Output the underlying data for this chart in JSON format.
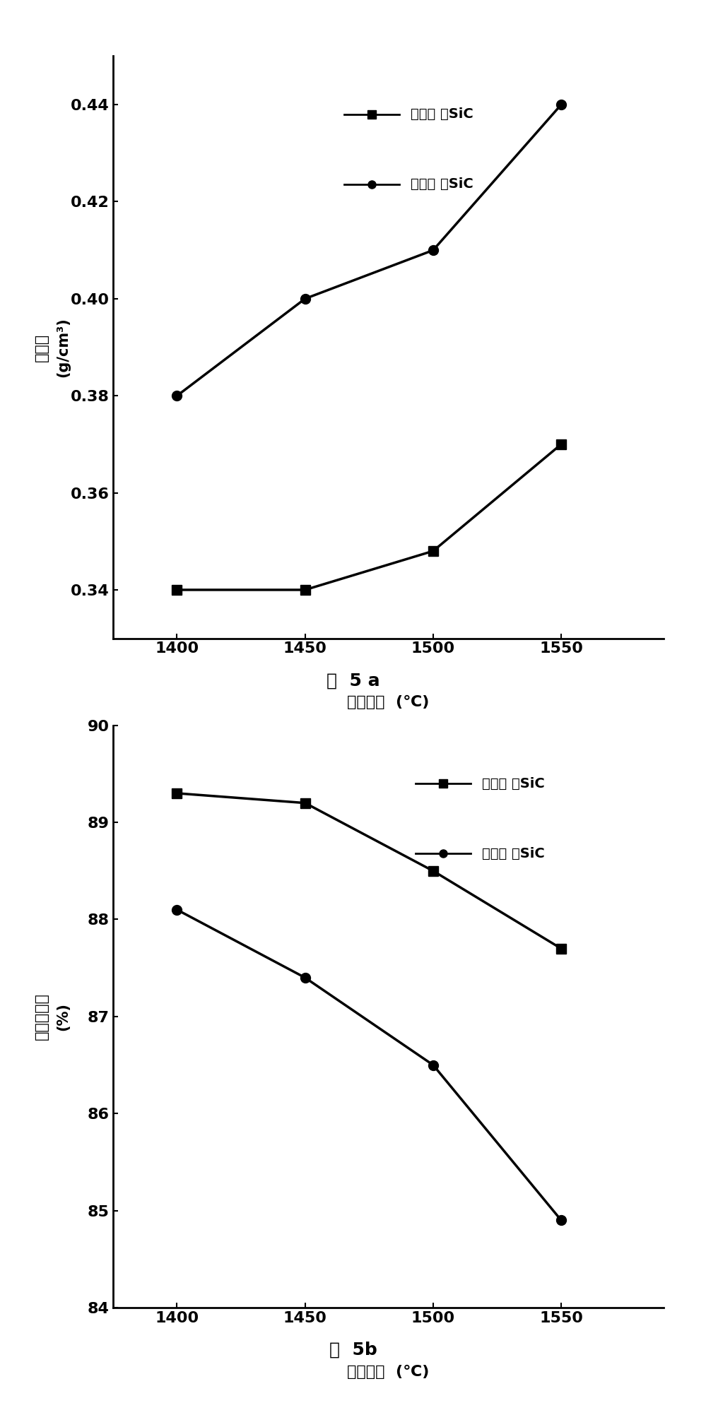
{
  "x_values": [
    1400,
    1450,
    1500,
    1550
  ],
  "fig5a": {
    "series1_label_cn": "未氧化",
    "series1_label_sic": "SiC",
    "series2_label_cn": "预氧化",
    "series2_label_sic": "SiC",
    "series1_y": [
      0.34,
      0.34,
      0.348,
      0.37
    ],
    "series2_y": [
      0.38,
      0.4,
      0.41,
      0.44
    ],
    "ylabel_cn": "体密度",
    "ylabel_unit": "(g/cm³)",
    "xlabel_cn": "烧结温度",
    "xlabel_unit": "(℃)",
    "caption": "图  5 a",
    "ylim": [
      0.33,
      0.45
    ],
    "yticks": [
      0.34,
      0.36,
      0.38,
      0.4,
      0.42,
      0.44
    ]
  },
  "fig5b": {
    "series1_label_cn": "未氧化",
    "series1_label_sic": "SiC",
    "series2_label_cn": "预氧化",
    "series2_label_sic": "SiC",
    "series1_y": [
      89.3,
      89.2,
      88.5,
      87.7
    ],
    "series2_y": [
      88.1,
      87.4,
      86.5,
      84.9
    ],
    "ylabel_cn": "开口孔隙率",
    "ylabel_unit": "(%)",
    "xlabel_cn": "烧结温度",
    "xlabel_unit": "(℃)",
    "caption": "图  5b",
    "ylim": [
      84,
      90
    ],
    "yticks": [
      84,
      85,
      86,
      87,
      88,
      89,
      90
    ]
  },
  "line_color": "#000000",
  "marker_square": "s",
  "marker_circle": "o",
  "linewidth": 2.5,
  "markersize": 10,
  "background_color": "#ffffff",
  "tick_fontsize": 16,
  "label_fontsize": 16,
  "legend_fontsize": 14,
  "caption_fontsize": 18
}
